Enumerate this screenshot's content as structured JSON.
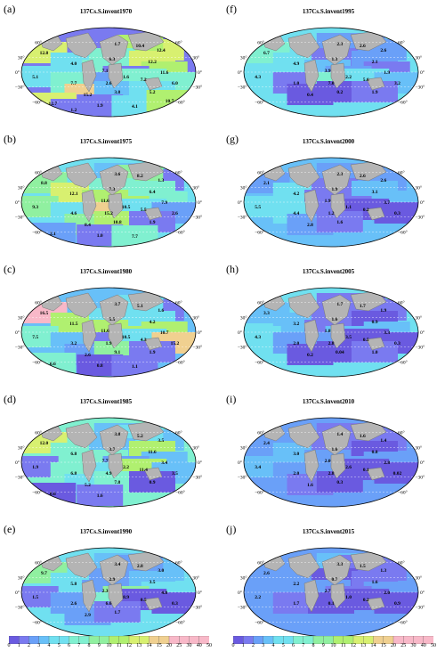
{
  "panels": [
    {
      "letter": "(a)",
      "title": "137Cs.S.invent1970",
      "values": [
        "12.8",
        "4.0",
        "1.7",
        "12.4",
        "10.4",
        "6.3",
        "12.2",
        "7.1",
        "11.6",
        "5.1",
        "7.7",
        "1.6",
        "2.6",
        "7.2",
        "6.0",
        "15.2",
        "3.8",
        "5.2",
        "12.7",
        "1.9",
        "4.1",
        "10.7",
        "1.2"
      ],
      "lat_labels": [
        "60°",
        "30°",
        "0°",
        "−30°",
        "−60°",
        "60°",
        "30°",
        "0°",
        "−30°",
        "−60°"
      ]
    },
    {
      "letter": "(b)",
      "title": "137Cs.S.invent1975",
      "values": [
        "8.8",
        "12.1",
        "3.6",
        "1.3",
        "8.2",
        "7.3",
        "6.4",
        "11.6",
        "7.9",
        "9.3",
        "4.6",
        "10.5",
        "15.2",
        "5.5",
        "2.6",
        "8.4",
        "10.8",
        "1.9",
        "2.1",
        "1.0",
        "7.7"
      ],
      "lat_labels": [
        "60°",
        "30°",
        "0°",
        "−30°",
        "−60°",
        "60°",
        "30°",
        "0°",
        "−30°",
        "−60°"
      ]
    },
    {
      "letter": "(c)",
      "title": "137Cs.S.invent1980",
      "values": [
        "16.5",
        "11.5",
        "3.7",
        "1.6",
        "5.1",
        "5.5",
        "4.2",
        "11.6",
        "10.7",
        "7.5",
        "3.2",
        "10.5",
        "1.9",
        "4.3",
        "15.2",
        "2.6",
        "9.1",
        "1.9",
        "6.6",
        "0.8",
        "1.1"
      ],
      "lat_labels": [
        "60°",
        "30°",
        "0°",
        "−30°",
        "−60°",
        "60°",
        "30°",
        "0°",
        "−30°",
        "−60°"
      ]
    },
    {
      "letter": "(d)",
      "title": "137Cs.S.invent1985",
      "values": [
        "12.0",
        "6.8",
        "3.8",
        "3.5",
        "5.2",
        "3.7",
        "11.6",
        "7.7",
        "3.4",
        "1.9",
        "6.8",
        "2.2",
        "4.9",
        "11.4",
        "3.5",
        "5.2",
        "7.8",
        "0.9",
        "0.6",
        "1.6"
      ],
      "lat_labels": [
        "60°",
        "30°",
        "0°",
        "−30°",
        "−60°",
        "60°",
        "30°",
        "0°",
        "−30°",
        "−60°"
      ]
    },
    {
      "letter": "(e)",
      "title": "137Cs.S.invent1990",
      "values": [
        "9.7",
        "5.8",
        "3.4",
        "3.0",
        "2.8",
        "2.9",
        "3.5",
        "2.3",
        "4.8",
        "1.5",
        "2.6",
        "8.9",
        "6.6",
        "0.5",
        "0.3",
        "2.9",
        "1.7"
      ],
      "lat_labels": [
        "60°",
        "30°",
        "0°",
        "−30°",
        "−60°",
        "60°",
        "30°",
        "0°",
        "−30°",
        "−60°"
      ]
    },
    {
      "letter": "(f)",
      "title": "137Cs.S.invent1995",
      "values": [
        "6.7",
        "4.9",
        "2.3",
        "2.6",
        "2.6",
        "1.3",
        "2.1",
        "3.9",
        "1.9",
        "4.3",
        "1.0",
        "2.2",
        "7.0",
        "5.6",
        "3.2",
        "0.4",
        "0.2",
        "1.9"
      ],
      "lat_labels": [
        "60°",
        "30°",
        "0°",
        "−30°",
        "−60°",
        "60°",
        "30°",
        "0°",
        "−30°",
        "−60°"
      ]
    },
    {
      "letter": "(g)",
      "title": "137Cs.S.invent2000",
      "values": [
        "2.1",
        "4.2",
        "2.3",
        "2.6",
        "2.6",
        "1.9",
        "3.1",
        "1.9",
        "3.7",
        "5.5",
        "4.4",
        "1.1",
        "1.2",
        "0.2",
        "0.3",
        "2.8",
        "1.6"
      ],
      "lat_labels": [
        "60°",
        "30°",
        "0°",
        "−30°",
        "−60°",
        "60°",
        "30°",
        "0°",
        "−30°",
        "−60°"
      ]
    },
    {
      "letter": "(h)",
      "title": "137Cs.S.invent2005",
      "values": [
        "3.3",
        "3.2",
        "1.7",
        "1.9",
        "1.7",
        "1.6",
        "0.9",
        "1.8",
        "3.3",
        "4.3",
        "2.0",
        "3.5",
        "2.8",
        "0.5",
        "0.3",
        "0.2",
        "0.04",
        "1.0"
      ],
      "lat_labels": [
        "60°",
        "30°",
        "0°",
        "−30°",
        "−60°",
        "60°",
        "30°",
        "0°",
        "−30°",
        "−60°"
      ]
    },
    {
      "letter": "(i)",
      "title": "137Cs.S.invent2010",
      "values": [
        "2.4",
        "3.0",
        "1.4",
        "1.4",
        "1.6",
        "1.6",
        "0.8",
        "2.0",
        "2.8",
        "3.4",
        "2.0",
        "2.6",
        "2.8",
        "0.1",
        "0.02",
        "1.6",
        "0.3"
      ],
      "lat_labels": [
        "60°",
        "30°",
        "0°",
        "−30°",
        "−60°",
        "60°",
        "30°",
        "0°",
        "−30°",
        "−60°"
      ]
    },
    {
      "letter": "(j)",
      "title": "137Cs.S.invent2015",
      "values": [
        "2.6",
        "2.2",
        "3.3",
        "1.3",
        "1.5",
        "0.7",
        "1.6",
        "2.7",
        "2.0",
        "2.2",
        "1.7",
        "1.0",
        "0.1",
        "0.2",
        "0.9"
      ],
      "lat_labels": [
        "60°",
        "30°",
        "0°",
        "−30°",
        "−60°",
        "60°",
        "30°",
        "0°",
        "−30°",
        "−60°"
      ]
    }
  ],
  "colorbar_left": {
    "ticks": [
      "0",
      "1",
      "2",
      "3",
      "4",
      "5",
      "6",
      "7",
      "8",
      "9",
      "10",
      "11",
      "12",
      "13",
      "14",
      "15",
      "20",
      "25",
      "30",
      "40",
      "50"
    ]
  },
  "colorbar_right": {
    "ticks": [
      "0",
      "1",
      "2",
      "3",
      "4",
      "5",
      "6",
      "7",
      "8",
      "9",
      "10",
      "11",
      "12",
      "13",
      "14",
      "15",
      "20",
      "25",
      "30",
      "40",
      "50"
    ]
  },
  "colors": {
    "ocean_low": "#7a6ae8",
    "ocean_mid": "#68b8f8",
    "ocean_high": "#78f0e0",
    "ocean_green": "#a0f070",
    "ocean_peak": "#f0c080",
    "land": "#b4b4b4",
    "grid": "#ffffff"
  }
}
